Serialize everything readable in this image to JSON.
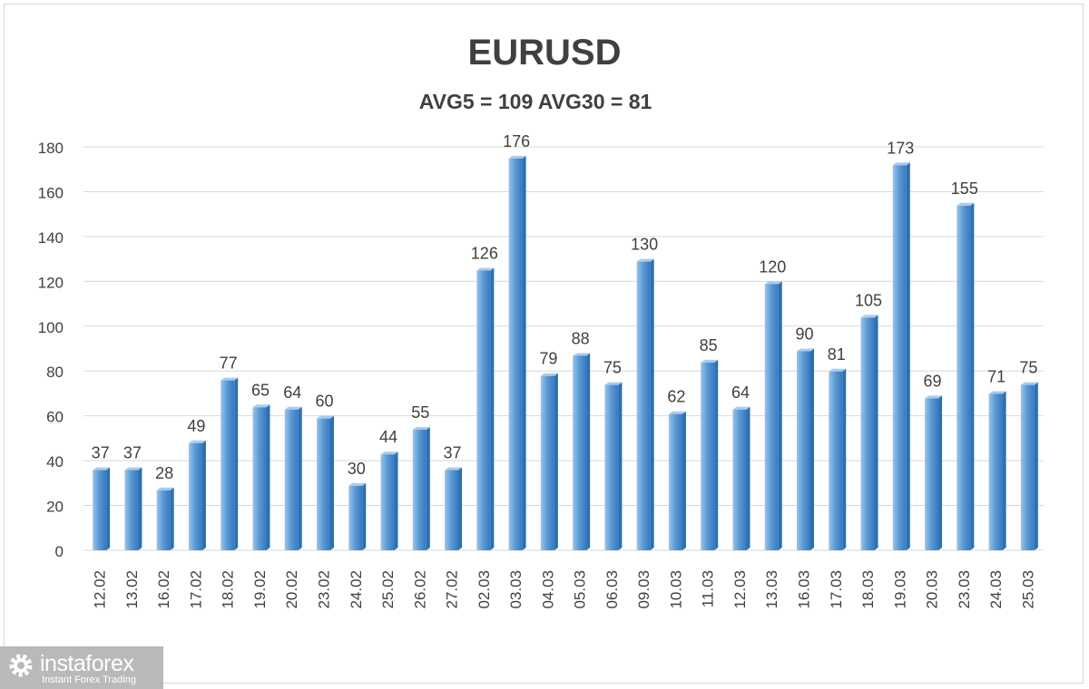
{
  "title": "EURUSD",
  "subtitle": "AVG5 = 109 AVG30 = 81",
  "brand": {
    "name": "instaforex",
    "tagline": "Instant Forex Trading"
  },
  "colors": {
    "bar": "#5b9bd5",
    "bar_dark": "#2e6fb0",
    "grid": "#d9d9d9",
    "text": "#404040"
  },
  "chart_data": {
    "type": "bar",
    "categories": [
      "12.02",
      "13.02",
      "16.02",
      "17.02",
      "18.02",
      "19.02",
      "20.02",
      "23.02",
      "24.02",
      "25.02",
      "26.02",
      "27.02",
      "02.03",
      "03.03",
      "04.03",
      "05.03",
      "06.03",
      "09.03",
      "10.03",
      "11.03",
      "12.03",
      "13.03",
      "16.03",
      "17.03",
      "18.03",
      "19.03",
      "20.03",
      "23.03",
      "24.03",
      "25.03"
    ],
    "values": [
      37,
      37,
      28,
      49,
      77,
      65,
      64,
      60,
      30,
      44,
      55,
      37,
      126,
      176,
      79,
      88,
      75,
      130,
      62,
      85,
      64,
      120,
      90,
      81,
      105,
      173,
      69,
      155,
      71,
      75
    ],
    "yticks": [
      "0",
      "20",
      "40",
      "60",
      "80",
      "100",
      "120",
      "140",
      "160",
      "180"
    ],
    "ylim": [
      0,
      180
    ],
    "grid": true,
    "legend": "none"
  }
}
